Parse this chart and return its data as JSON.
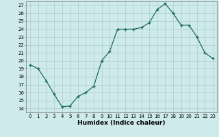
{
  "x": [
    0,
    1,
    2,
    3,
    4,
    5,
    6,
    7,
    8,
    9,
    10,
    11,
    12,
    13,
    14,
    15,
    16,
    17,
    18,
    19,
    20,
    21,
    22,
    23
  ],
  "y": [
    19.5,
    19.0,
    17.5,
    15.8,
    14.2,
    14.3,
    15.5,
    16.0,
    16.8,
    20.0,
    21.2,
    24.0,
    24.0,
    24.0,
    24.2,
    24.8,
    26.5,
    27.2,
    26.0,
    24.5,
    24.5,
    23.0,
    21.0,
    20.3
  ],
  "xlabel": "Humidex (Indice chaleur)",
  "xlim": [
    -0.5,
    23.5
  ],
  "ylim": [
    13.5,
    27.5
  ],
  "yticks": [
    14,
    15,
    16,
    17,
    18,
    19,
    20,
    21,
    22,
    23,
    24,
    25,
    26,
    27
  ],
  "xticks": [
    0,
    1,
    2,
    3,
    4,
    5,
    6,
    7,
    8,
    9,
    10,
    11,
    12,
    13,
    14,
    15,
    16,
    17,
    18,
    19,
    20,
    21,
    22,
    23
  ],
  "line_color": "#1a6b5a",
  "marker_color": "#1a6b5a",
  "bg_color": "#ceeaea",
  "grid_color": "#b0d0d0",
  "xlabel_fontsize": 6.5,
  "tick_fontsize": 5.0
}
